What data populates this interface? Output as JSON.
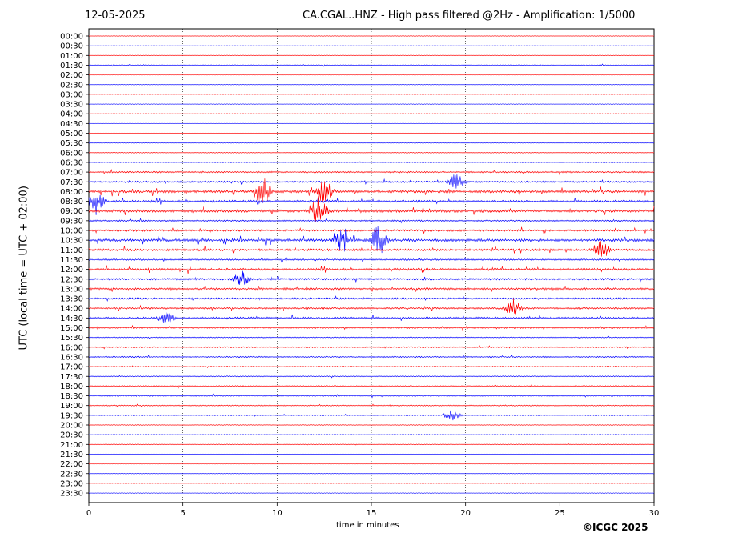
{
  "header": {
    "date": "12-05-2025",
    "title": "CA.CGAL..HNZ - High pass filtered @2Hz - Amplification: 1/5000"
  },
  "footer": {
    "copyright": "©ICGC 2025"
  },
  "chart_data": {
    "type": "line",
    "title": "CA.CGAL..HNZ - High pass filtered @2Hz - Amplification: 1/5000",
    "xlabel": "time in minutes",
    "ylabel": "UTC (local time = UTC + 02:00)",
    "xlim": [
      0,
      30
    ],
    "xticks": [
      0,
      5,
      10,
      15,
      20,
      25,
      30
    ],
    "grid_x": true,
    "colors": {
      "trace_a": "#ff0000",
      "trace_b": "#0000ff",
      "grid": "#000000"
    },
    "rows": [
      "00:00",
      "00:30",
      "01:00",
      "01:30",
      "02:00",
      "02:30",
      "03:00",
      "03:30",
      "04:00",
      "04:30",
      "05:00",
      "05:30",
      "06:00",
      "06:30",
      "07:00",
      "07:30",
      "08:00",
      "08:30",
      "09:00",
      "09:30",
      "10:00",
      "10:30",
      "11:00",
      "11:30",
      "12:00",
      "12:30",
      "13:00",
      "13:30",
      "14:00",
      "14:30",
      "15:00",
      "15:30",
      "16:00",
      "16:30",
      "17:00",
      "17:30",
      "18:00",
      "18:30",
      "19:00",
      "19:30",
      "20:00",
      "20:30",
      "21:00",
      "21:30",
      "22:00",
      "22:30",
      "23:00",
      "23:30"
    ],
    "row_activity": [
      0.0,
      0.0,
      0.0,
      0.2,
      0.0,
      0.0,
      0.0,
      0.0,
      0.0,
      0.0,
      0.0,
      0.0,
      0.1,
      0.1,
      0.4,
      0.5,
      0.8,
      0.7,
      0.9,
      0.4,
      0.6,
      0.9,
      0.7,
      0.4,
      0.7,
      0.6,
      0.6,
      0.5,
      0.5,
      0.6,
      0.4,
      0.2,
      0.3,
      0.3,
      0.2,
      0.2,
      0.3,
      0.3,
      0.2,
      0.2,
      0.1,
      0.1,
      0.1,
      0.0,
      0.0,
      0.0,
      0.0,
      0.0
    ],
    "events": [
      {
        "row": "07:30",
        "minute": 19.5,
        "amp": 0.6
      },
      {
        "row": "08:00",
        "minute": 9.2,
        "amp": 0.9
      },
      {
        "row": "08:00",
        "minute": 12.5,
        "amp": 0.8
      },
      {
        "row": "08:30",
        "minute": 0.4,
        "amp": 0.6
      },
      {
        "row": "09:00",
        "minute": 12.2,
        "amp": 1.0
      },
      {
        "row": "10:30",
        "minute": 13.4,
        "amp": 1.0
      },
      {
        "row": "10:30",
        "minute": 15.4,
        "amp": 1.0
      },
      {
        "row": "11:00",
        "minute": 27.2,
        "amp": 0.6
      },
      {
        "row": "12:30",
        "minute": 8.1,
        "amp": 0.5
      },
      {
        "row": "14:00",
        "minute": 22.5,
        "amp": 0.6
      },
      {
        "row": "14:30",
        "minute": 4.1,
        "amp": 0.4
      },
      {
        "row": "19:30",
        "minute": 19.3,
        "amp": 0.3
      }
    ]
  }
}
